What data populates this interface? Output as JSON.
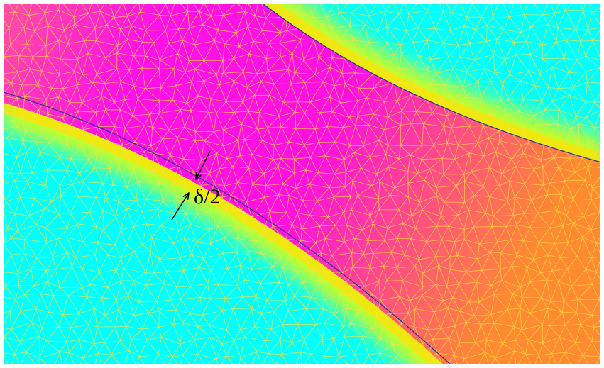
{
  "annotation": {
    "label": "δ/2"
  }
}
